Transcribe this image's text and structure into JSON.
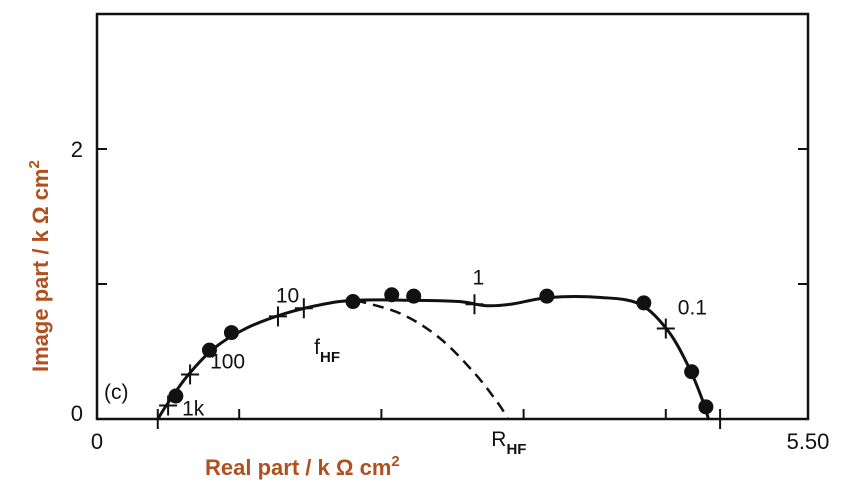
{
  "chart_data": {
    "type": "scatter",
    "panel_label": "(c)",
    "xlabel": "Real part / k Ω cm",
    "xlabel_sup": "2",
    "ylabel": "Image part / k Ω cm",
    "ylabel_sup": "2",
    "xlim": [
      0,
      5.5
    ],
    "ylim": [
      0,
      3
    ],
    "x_ticks": [
      {
        "value": 0,
        "label": "0"
      },
      {
        "value": 5.5,
        "label": "5.50"
      }
    ],
    "y_ticks": [
      {
        "value": 0,
        "label": "0"
      },
      {
        "value": 2,
        "label": "2"
      }
    ],
    "grid": false,
    "measured_points": [
      {
        "x": 0.61,
        "y": 0.17
      },
      {
        "x": 0.87,
        "y": 0.51
      },
      {
        "x": 1.04,
        "y": 0.64
      },
      {
        "x": 1.98,
        "y": 0.87
      },
      {
        "x": 2.28,
        "y": 0.92
      },
      {
        "x": 2.45,
        "y": 0.91
      },
      {
        "x": 3.48,
        "y": 0.91
      },
      {
        "x": 4.23,
        "y": 0.86
      },
      {
        "x": 4.6,
        "y": 0.35
      },
      {
        "x": 4.71,
        "y": 0.09
      }
    ],
    "fit_curve": [
      {
        "x": 0.47,
        "y": 0.0
      },
      {
        "x": 0.55,
        "y": 0.12
      },
      {
        "x": 0.7,
        "y": 0.32
      },
      {
        "x": 0.9,
        "y": 0.52
      },
      {
        "x": 1.15,
        "y": 0.67
      },
      {
        "x": 1.45,
        "y": 0.78
      },
      {
        "x": 1.75,
        "y": 0.85
      },
      {
        "x": 2.0,
        "y": 0.88
      },
      {
        "x": 2.4,
        "y": 0.88
      },
      {
        "x": 2.8,
        "y": 0.87
      },
      {
        "x": 3.0,
        "y": 0.84
      },
      {
        "x": 3.2,
        "y": 0.85
      },
      {
        "x": 3.5,
        "y": 0.9
      },
      {
        "x": 3.9,
        "y": 0.9
      },
      {
        "x": 4.2,
        "y": 0.85
      },
      {
        "x": 4.42,
        "y": 0.65
      },
      {
        "x": 4.58,
        "y": 0.38
      },
      {
        "x": 4.68,
        "y": 0.15
      },
      {
        "x": 4.73,
        "y": 0.0
      }
    ],
    "dashed_curve": [
      {
        "x": 2.0,
        "y": 0.88
      },
      {
        "x": 2.35,
        "y": 0.78
      },
      {
        "x": 2.65,
        "y": 0.6
      },
      {
        "x": 2.92,
        "y": 0.34
      },
      {
        "x": 3.1,
        "y": 0.12
      },
      {
        "x": 3.18,
        "y": 0.0
      }
    ],
    "frequency_markers": [
      {
        "x": 0.47,
        "y": 0.0,
        "label": ""
      },
      {
        "x": 0.55,
        "y": 0.1,
        "label": "1k"
      },
      {
        "x": 0.72,
        "y": 0.33,
        "label": "100"
      },
      {
        "x": 1.4,
        "y": 0.76,
        "label": ""
      },
      {
        "x": 1.6,
        "y": 0.82,
        "label": "10"
      },
      {
        "x": 2.92,
        "y": 0.85,
        "label": "1"
      },
      {
        "x": 4.4,
        "y": 0.67,
        "label": "0.1"
      },
      {
        "x": 4.82,
        "y": 0.0,
        "label": ""
      }
    ],
    "annotations": [
      {
        "text": "f",
        "sub": "HF",
        "x": 1.68,
        "y": 0.48
      },
      {
        "text": "R",
        "sub": "HF",
        "x": 3.05,
        "y": -0.2
      }
    ]
  }
}
